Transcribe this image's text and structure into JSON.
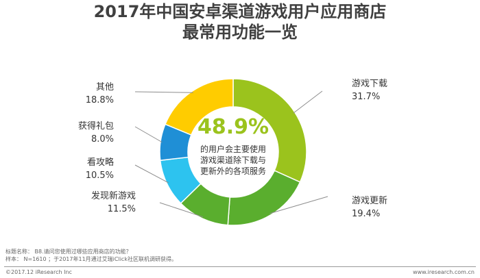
{
  "chart_data": {
    "type": "pie",
    "title_line1": "2017年中国安卓渠道游戏用户应用商店",
    "title_line2": "最常用功能一览",
    "categories": [
      "游戏下载",
      "游戏更新",
      "发现新游戏",
      "看攻略",
      "获得礼包",
      "其他"
    ],
    "values": [
      31.7,
      19.4,
      11.5,
      10.5,
      8.0,
      18.8
    ],
    "value_labels": [
      "31.7%",
      "19.4%",
      "11.5%",
      "10.5%",
      "8.0%",
      "18.8%"
    ],
    "colors": [
      "#9bc31d",
      "#5aae2e",
      "#5aae2e",
      "#2dc3ef",
      "#1f8fd6",
      "#ffcc00"
    ],
    "center": {
      "value": "48.9%",
      "lines": [
        "的用户会主要使用",
        "游戏渠道除下载与",
        "更新外的各项服务"
      ]
    }
  },
  "notes": {
    "line1": "标题名称：  B8.请问您使用过哪些应用商店的功能？",
    "line2": "样本：  N=1610 ；于2017年11月通过艾瑞iClick社区联机调研获得。"
  },
  "footer": {
    "copyright": "©2017.12 iResearch Inc",
    "website": "www.iresearch.com.cn"
  }
}
